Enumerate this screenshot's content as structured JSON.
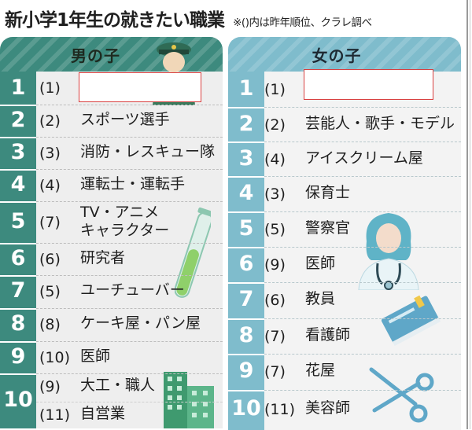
{
  "title": "新小学1年生の就きたい職業",
  "note": "※()内は昨年順位、クラレ調べ",
  "boys": {
    "header": "男の子",
    "rows": [
      {
        "rank": "1",
        "prev": "(1)",
        "job": ""
      },
      {
        "rank": "2",
        "prev": "(2)",
        "job": "スポーツ選手"
      },
      {
        "rank": "3",
        "prev": "(3)",
        "job": "消防・レスキュー隊"
      },
      {
        "rank": "4",
        "prev": "(4)",
        "job": "運転士・運転手"
      },
      {
        "rank": "5",
        "prev": "(7)",
        "job": "TV・アニメ\nキャラクター"
      },
      {
        "rank": "6",
        "prev": "(6)",
        "job": "研究者"
      },
      {
        "rank": "7",
        "prev": "(5)",
        "job": "ユーチューバー"
      },
      {
        "rank": "8",
        "prev": "(8)",
        "job": "ケーキ屋・パン屋"
      },
      {
        "rank": "9",
        "prev": "(10)",
        "job": "医師"
      },
      {
        "rank": "10",
        "prev": "(9)",
        "job": "大工・職人"
      },
      {
        "rank": "",
        "prev": "(11)",
        "job": "自営業"
      }
    ]
  },
  "girls": {
    "header": "女の子",
    "rows": [
      {
        "rank": "1",
        "prev": "(1)",
        "job": ""
      },
      {
        "rank": "2",
        "prev": "(2)",
        "job": "芸能人・歌手・モデル"
      },
      {
        "rank": "3",
        "prev": "(4)",
        "job": "アイスクリーム屋"
      },
      {
        "rank": "4",
        "prev": "(3)",
        "job": "保育士"
      },
      {
        "rank": "5",
        "prev": "(5)",
        "job": "警察官"
      },
      {
        "rank": "6",
        "prev": "(9)",
        "job": "医師"
      },
      {
        "rank": "7",
        "prev": "(6)",
        "job": "教員"
      },
      {
        "rank": "8",
        "prev": "(7)",
        "job": "看護師"
      },
      {
        "rank": "9",
        "prev": "(7)",
        "job": "花屋"
      },
      {
        "rank": "10",
        "prev": "(11)",
        "job": "美容師"
      }
    ]
  },
  "colors": {
    "boys_accent": "#3d8a7e",
    "girls_accent": "#7fbccc",
    "redacted_border": "#d94040"
  },
  "icons": [
    "police-officer-icon",
    "test-tube-icon",
    "buildings-icon",
    "doctor-icon",
    "book-icon",
    "scissors-icon"
  ]
}
